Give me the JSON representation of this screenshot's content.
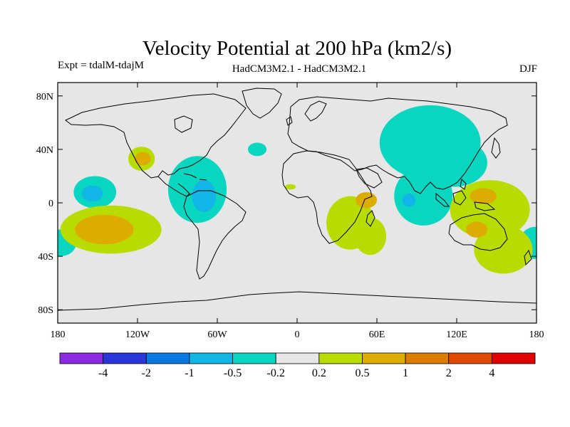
{
  "chart_data": {
    "type": "heatmap",
    "title": "Velocity Potential at 200 hPa (km2/s)",
    "subtitle_left": "Expt = tdalM-tdajM",
    "subtitle_center": "HadCM3M2.1 - HadCM3M2.1",
    "subtitle_right": "DJF",
    "xlim": [
      -180,
      180
    ],
    "ylim": [
      -90,
      90
    ],
    "x_ticks": [
      {
        "value": -180,
        "label": "180"
      },
      {
        "value": -120,
        "label": "120W"
      },
      {
        "value": -60,
        "label": "60W"
      },
      {
        "value": 0,
        "label": "0"
      },
      {
        "value": 60,
        "label": "60E"
      },
      {
        "value": 120,
        "label": "120E"
      },
      {
        "value": 180,
        "label": "180"
      }
    ],
    "y_ticks": [
      {
        "value": 80,
        "label": "80N"
      },
      {
        "value": 40,
        "label": "40N"
      },
      {
        "value": 0,
        "label": "0"
      },
      {
        "value": -40,
        "label": "40S"
      },
      {
        "value": -80,
        "label": "80S"
      }
    ],
    "colorbar": {
      "colors": [
        "#8a2be2",
        "#2a36d8",
        "#0a78e0",
        "#12b6e6",
        "#08d6c0",
        "#e6e6e6",
        "#b8dc00",
        "#dcac00",
        "#dc7c00",
        "#e04a00",
        "#e00000"
      ],
      "boundaries": [
        "-4",
        "-2",
        "-1",
        "-0.5",
        "-0.2",
        "0.2",
        "0.5",
        "1",
        "2",
        "4"
      ]
    },
    "background_color": "#e6e6e6",
    "regions": [
      {
        "name": "North Asia / Pacific negative",
        "lon": 100,
        "lat": 45,
        "rlon": 38,
        "rlat": 28,
        "level": 4
      },
      {
        "name": "East Asia negative",
        "lon": 118,
        "lat": 30,
        "rlon": 25,
        "rlat": 18,
        "level": 4
      },
      {
        "name": "Indian Ocean negative",
        "lon": 95,
        "lat": 5,
        "rlon": 22,
        "rlat": 22,
        "level": 4
      },
      {
        "name": "Indian Ocean core",
        "lon": 84,
        "lat": 2,
        "rlon": 5,
        "rlat": 5,
        "level": 3
      },
      {
        "name": "Central Pacific negative",
        "lon": -152,
        "lat": 8,
        "rlon": 16,
        "rlat": 12,
        "level": 4
      },
      {
        "name": "Central Pacific core",
        "lon": -154,
        "lat": 7,
        "rlon": 8,
        "rlat": 6,
        "level": 3
      },
      {
        "name": "Caribbean negative",
        "lon": -75,
        "lat": 10,
        "rlon": 22,
        "rlat": 25,
        "level": 4
      },
      {
        "name": "Caribbean core",
        "lon": -70,
        "lat": 5,
        "rlon": 9,
        "rlat": 12,
        "level": 3
      },
      {
        "name": "North Atlantic negative",
        "lon": -30,
        "lat": 40,
        "rlon": 7,
        "rlat": 5,
        "level": 4
      },
      {
        "name": "South Pacific edge negative",
        "lon": -178,
        "lat": -30,
        "rlon": 12,
        "rlat": 10,
        "level": 4
      },
      {
        "name": "Australia edge negative",
        "lon": 179,
        "lat": -30,
        "rlon": 12,
        "rlat": 12,
        "level": 4
      },
      {
        "name": "North Pacific positive",
        "lon": -117,
        "lat": 33,
        "rlon": 10,
        "rlat": 9,
        "level": 6
      },
      {
        "name": "North Pacific core",
        "lon": -116,
        "lat": 33,
        "rlon": 6,
        "rlat": 5,
        "level": 7
      },
      {
        "name": "South Pacific positive",
        "lon": -140,
        "lat": -20,
        "rlon": 38,
        "rlat": 18,
        "level": 6
      },
      {
        "name": "South Pacific core",
        "lon": -145,
        "lat": -20,
        "rlon": 22,
        "rlat": 11,
        "level": 7
      },
      {
        "name": "Africa positive",
        "lon": 40,
        "lat": -15,
        "rlon": 18,
        "rlat": 20,
        "level": 6
      },
      {
        "name": "Madagascar positive",
        "lon": 55,
        "lat": -25,
        "rlon": 12,
        "rlat": 14,
        "level": 6
      },
      {
        "name": "Africa core",
        "lon": 52,
        "lat": 2,
        "rlon": 8,
        "rlat": 6,
        "level": 7
      },
      {
        "name": "West Pacific positive",
        "lon": 145,
        "lat": -5,
        "rlon": 30,
        "rlat": 22,
        "level": 6
      },
      {
        "name": "Australia positive",
        "lon": 155,
        "lat": -35,
        "rlon": 22,
        "rlat": 18,
        "level": 6
      },
      {
        "name": "West Pacific core",
        "lon": 140,
        "lat": 5,
        "rlon": 10,
        "rlat": 6,
        "level": 7
      },
      {
        "name": "Australia core",
        "lon": 135,
        "lat": -20,
        "rlon": 8,
        "rlat": 6,
        "level": 7
      },
      {
        "name": "Gulf of Guinea positive",
        "lon": -5,
        "lat": 12,
        "rlon": 4,
        "rlat": 2,
        "level": 6
      }
    ]
  }
}
